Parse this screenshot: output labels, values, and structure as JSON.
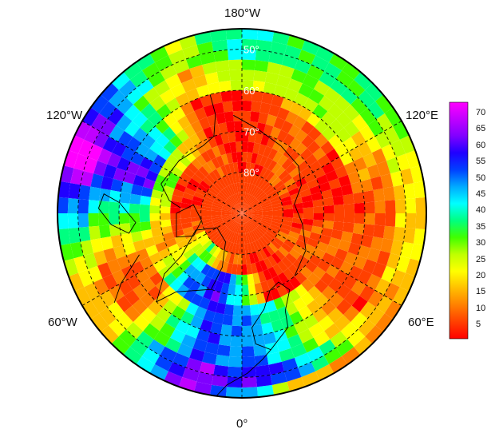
{
  "longitude_labels": {
    "top": "180°W",
    "upper_left": "120°W",
    "upper_right": "120°E",
    "lower_left": "60°W",
    "lower_right": "60°E",
    "bottom": "0°"
  },
  "latitude_labels": [
    "50°",
    "60°",
    "70°",
    "80°"
  ],
  "colorbar": {
    "ticks": [
      "70",
      "65",
      "60",
      "55",
      "50",
      "45",
      "40",
      "35",
      "30",
      "25",
      "20",
      "15",
      "10",
      "5"
    ],
    "range": [
      0,
      74
    ],
    "colors": [
      "#ff0000",
      "#ff4000",
      "#ff8000",
      "#ffbf00",
      "#ffff00",
      "#bfff00",
      "#40ff00",
      "#00ff80",
      "#00ffff",
      "#00aaff",
      "#0040ff",
      "#2000ff",
      "#8000ff",
      "#c000ff",
      "#ff00ff"
    ]
  },
  "map_regions": {
    "land_outline_color": "#000000",
    "grid_color": "#000000"
  }
}
